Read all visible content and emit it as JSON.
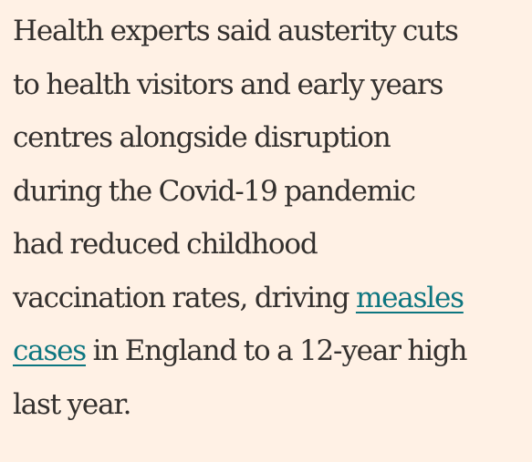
{
  "article": {
    "lines": [
      {
        "text": "Health experts said austerity cuts"
      },
      {
        "text": "to health visitors and early years"
      },
      {
        "text": "centres alongside disruption"
      },
      {
        "text": "during the Covid-19 pandemic"
      },
      {
        "text": "had reduced childhood"
      },
      {
        "text": "vaccination rates, driving ",
        "link": "measles"
      },
      {
        "link": "cases",
        "after": " in England to a 12-year high"
      },
      {
        "text": "last year."
      }
    ]
  },
  "colors": {
    "background": "#FFF1E5",
    "text": "#33302E",
    "link": "#0D7680"
  }
}
